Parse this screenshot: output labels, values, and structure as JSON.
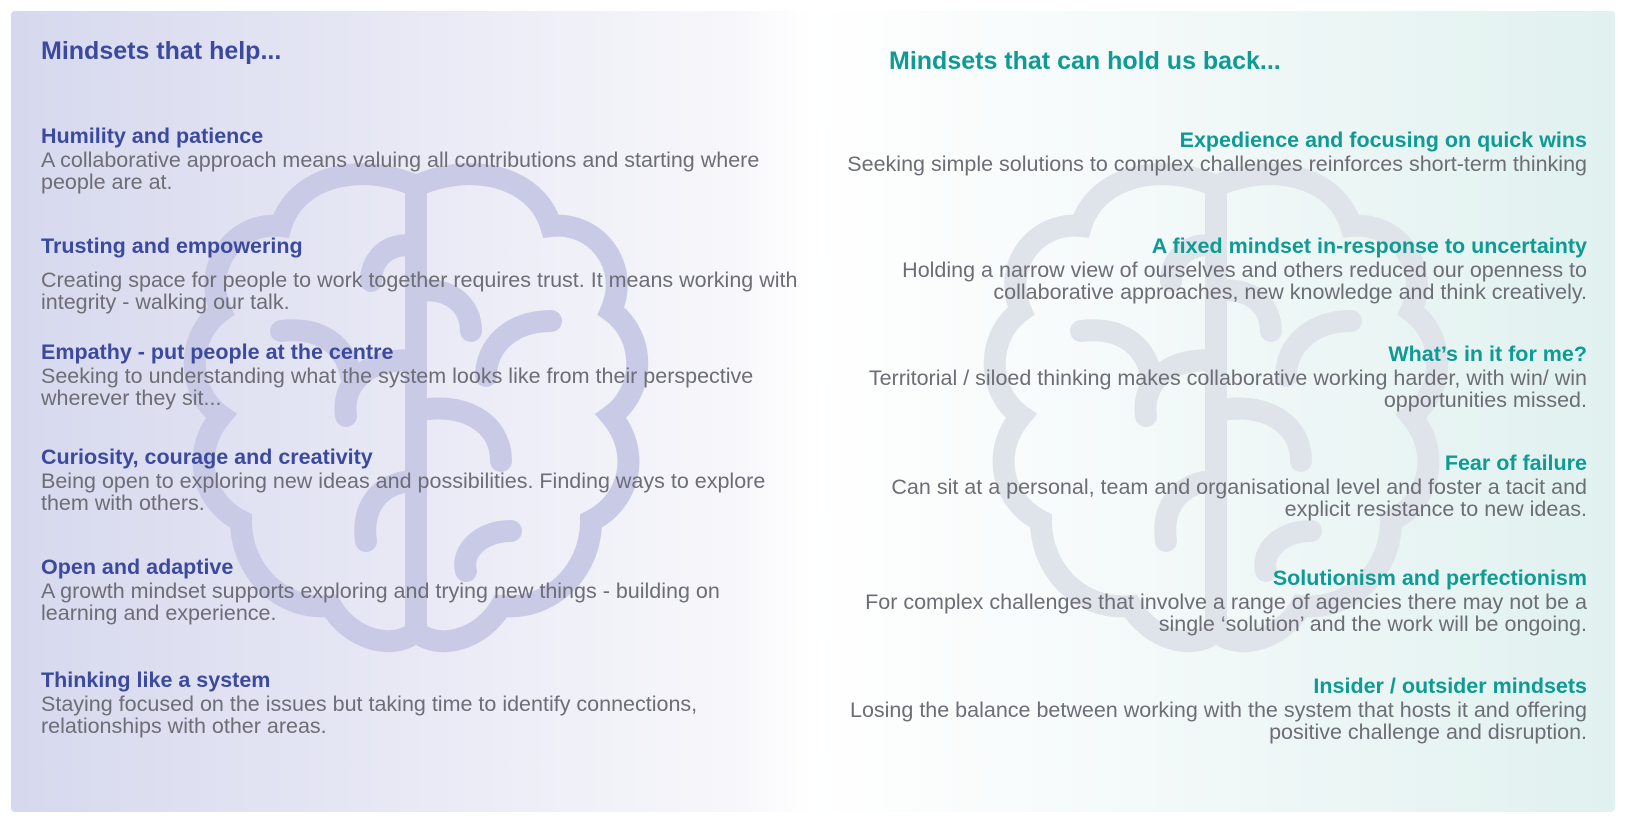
{
  "left": {
    "title": "Mindsets that help...",
    "items": [
      {
        "heading": "Humility and patience",
        "body": "A collaborative approach means valuing all contributions and starting where people are at."
      },
      {
        "heading": "Trusting and empowering",
        "body": "Creating space for people to work together requires trust. It means working with integrity - walking our talk."
      },
      {
        "heading": "Empathy - put people at the centre",
        "body": "Seeking to understanding what the system looks like from their perspective wherever they sit..."
      },
      {
        "heading": "Curiosity, courage and creativity",
        "body": "Being open to exploring new ideas and possibilities. Finding ways to explore them with others."
      },
      {
        "heading": "Open and adaptive",
        "body": "A growth mindset supports exploring and trying new things - building on learning and experience."
      },
      {
        "heading": "Thinking like a system",
        "body": "Staying focused on the issues but taking time to identify connections, relationships with other areas."
      }
    ]
  },
  "right": {
    "title": "Mindsets that can hold us back...",
    "items": [
      {
        "heading": "Expedience and focusing on quick wins",
        "body": "Seeking simple solutions to complex challenges reinforces short-term thinking"
      },
      {
        "heading": "A fixed mindset  in-response to uncertainty",
        "body": "Holding a narrow view of ourselves and others reduced our openness to collaborative approaches, new knowledge and think creatively."
      },
      {
        "heading": "What’s in it for me?",
        "body": "Territorial / siloed thinking makes collaborative working harder, with win/ win opportunities missed."
      },
      {
        "heading": "Fear of failure",
        "body": "Can sit at a personal, team and organisational level and foster a tacit and explicit resistance to new ideas."
      },
      {
        "heading": "Solutionism and perfectionism",
        "body": "For complex challenges that involve a range of agencies there may not be a single ‘solution’ and the work will be ongoing."
      },
      {
        "heading": "Insider / outsider mindsets",
        "body": "Losing the balance between working with the system that hosts it and offering positive challenge and disruption."
      }
    ]
  },
  "colors": {
    "left_accent": "#3b4a9e",
    "right_accent": "#0e9b93",
    "body_text": "#6d6d76"
  },
  "icons": [
    "brain-outline-icon",
    "brain-outline-icon"
  ]
}
